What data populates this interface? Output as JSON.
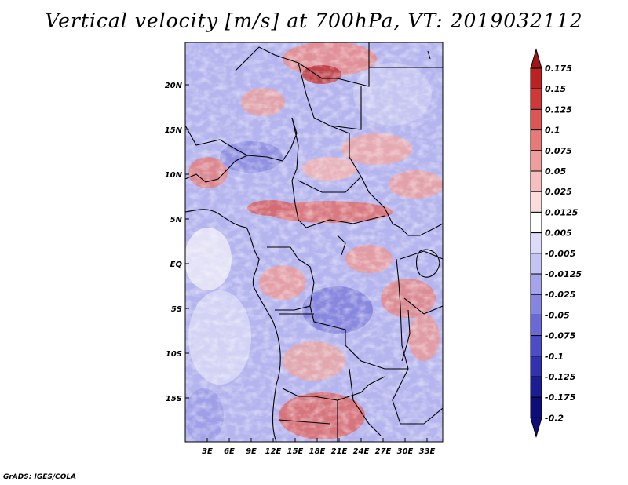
{
  "title": "Vertical velocity [m/s] at 700hPa, VT: 2019032112",
  "credit": "GrADS: IGES/COLA",
  "map": {
    "lat_labels": [
      "20N",
      "15N",
      "10N",
      "5N",
      "EQ",
      "5S",
      "10S",
      "15S"
    ],
    "lon_labels": [
      "3E",
      "6E",
      "9E",
      "12E",
      "15E",
      "18E",
      "21E",
      "24E",
      "27E",
      "30E",
      "33E"
    ]
  },
  "colorbar": {
    "levels": [
      "0.175",
      "0.15",
      "0.125",
      "0.1",
      "0.075",
      "0.05",
      "0.025",
      "0.0125",
      "0.005",
      "-0.005",
      "-0.0125",
      "-0.025",
      "-0.05",
      "-0.075",
      "-0.1",
      "-0.125",
      "-0.175",
      "-0.2"
    ],
    "colors": [
      "#a01515",
      "#bb2222",
      "#d03838",
      "#dc5656",
      "#e67a7a",
      "#f09d9d",
      "#f6bebe",
      "#fbdcdc",
      "#ffffff",
      "#dcdcfa",
      "#c3c3f4",
      "#a4a4ec",
      "#8585e2",
      "#6a6ad6",
      "#4c4cc6",
      "#3232b0",
      "#1c1c94",
      "#0e0e7a"
    ]
  }
}
